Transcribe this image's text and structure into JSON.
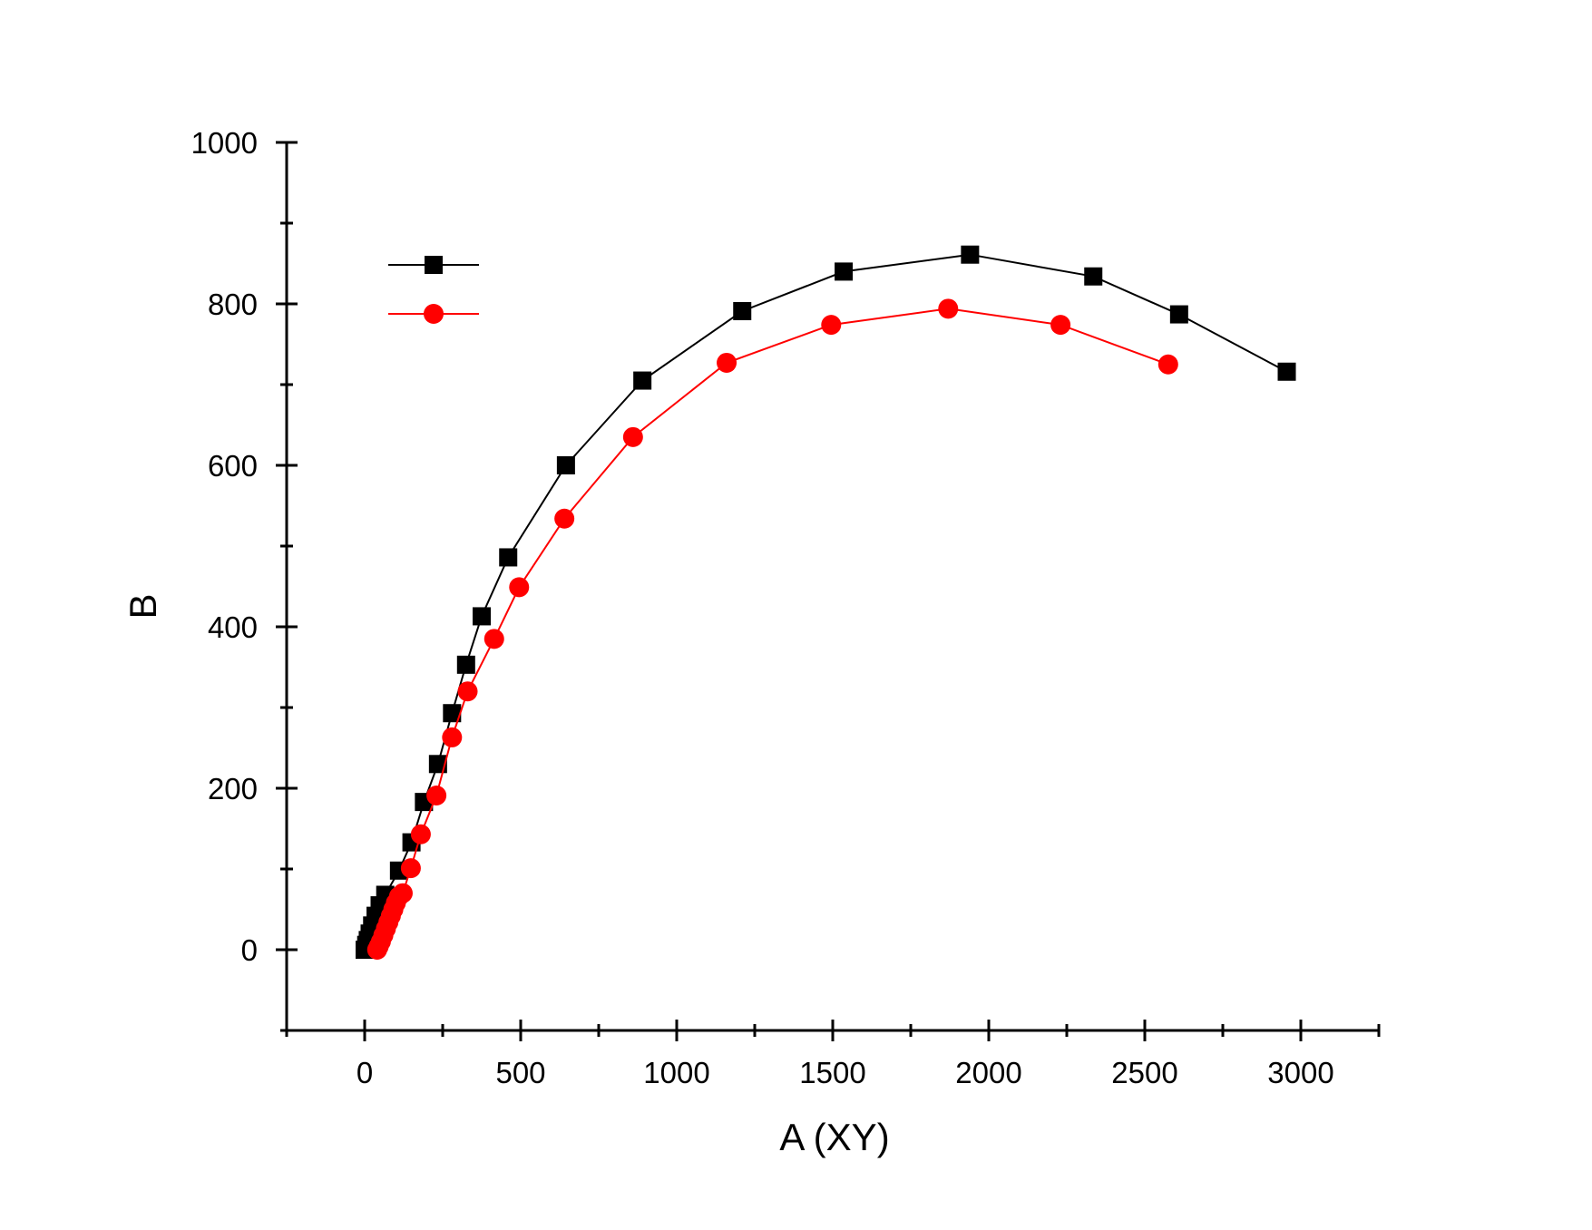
{
  "chart_data": {
    "type": "line",
    "title": "",
    "xlabel": "A (XY)",
    "ylabel": "B",
    "xlim": [
      -250,
      3250
    ],
    "ylim": [
      -100,
      1000
    ],
    "x_major_ticks": [
      0,
      500,
      1000,
      1500,
      2000,
      2500,
      3000
    ],
    "x_minor_ticks": [
      -250,
      250,
      750,
      1250,
      1750,
      2250,
      2750,
      3250
    ],
    "y_major_ticks": [
      0,
      200,
      400,
      600,
      800,
      1000
    ],
    "y_minor_ticks": [
      -100,
      100,
      300,
      500,
      700,
      900
    ],
    "x_tick_labels": [
      "0",
      "500",
      "1000",
      "1500",
      "2000",
      "2500",
      "3000"
    ],
    "y_tick_labels": [
      "0",
      "200",
      "400",
      "600",
      "800",
      "1000"
    ],
    "grid": false,
    "legend_position": "top-left",
    "series": [
      {
        "color": "#000000",
        "marker": "square",
        "points": [
          [
            0,
            0
          ],
          [
            5,
            6
          ],
          [
            10,
            12
          ],
          [
            16,
            20
          ],
          [
            24,
            30
          ],
          [
            35,
            42
          ],
          [
            48,
            55
          ],
          [
            66,
            68
          ],
          [
            110,
            98
          ],
          [
            150,
            133
          ],
          [
            190,
            183
          ],
          [
            235,
            230
          ],
          [
            280,
            293
          ],
          [
            325,
            353
          ],
          [
            375,
            413
          ],
          [
            460,
            486
          ],
          [
            645,
            600
          ],
          [
            890,
            705
          ],
          [
            1210,
            791
          ],
          [
            1535,
            840
          ],
          [
            1940,
            861
          ],
          [
            2335,
            834
          ],
          [
            2610,
            787
          ],
          [
            2955,
            716
          ]
        ]
      },
      {
        "color": "#ff0000",
        "marker": "circle",
        "points": [
          [
            40,
            0
          ],
          [
            45,
            4
          ],
          [
            52,
            10
          ],
          [
            60,
            18
          ],
          [
            68,
            26
          ],
          [
            76,
            34
          ],
          [
            84,
            42
          ],
          [
            92,
            50
          ],
          [
            100,
            58
          ],
          [
            110,
            66
          ],
          [
            122,
            70
          ],
          [
            148,
            101
          ],
          [
            180,
            143
          ],
          [
            230,
            191
          ],
          [
            280,
            263
          ],
          [
            330,
            320
          ],
          [
            415,
            385
          ],
          [
            495,
            449
          ],
          [
            640,
            534
          ],
          [
            860,
            635
          ],
          [
            1160,
            727
          ],
          [
            1495,
            774
          ],
          [
            1870,
            794
          ],
          [
            2230,
            774
          ],
          [
            2575,
            725
          ]
        ]
      }
    ]
  }
}
